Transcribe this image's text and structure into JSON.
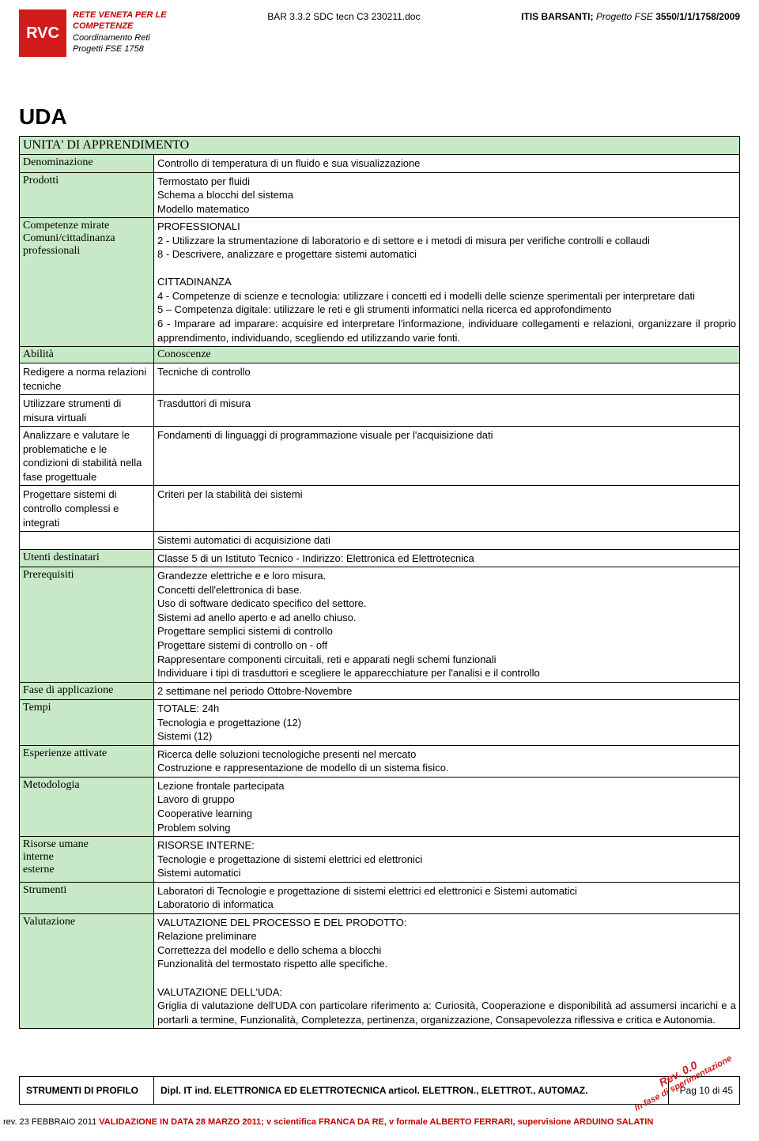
{
  "header": {
    "logo_abbr": "RVC",
    "logo_line1": "RETE VENETA PER LE",
    "logo_line2": "COMPETENZE",
    "logo_line3": "Coordinamento Reti",
    "logo_line4": "Progetti FSE 1758",
    "doc_ref": "BAR 3.3.2 SDC tecn C3 230211.doc",
    "right_prefix": "ITIS BARSANTI; ",
    "right_ital": "Progetto FSE ",
    "right_bold": "3550/1/1/1758/2009"
  },
  "title_h1": "UDA",
  "table_title": "UNITA' DI APPRENDIMENTO",
  "rows": {
    "denominazione": {
      "label": "Denominazione",
      "value": "Controllo di temperatura di un fluido e sua visualizzazione"
    },
    "prodotti": {
      "label": "Prodotti",
      "value": "Termostato per fluidi\nSchema a blocchi del sistema\nModello matematico"
    },
    "competenze": {
      "label": "Competenze mirate\nComuni/cittadinanza\nprofessionali",
      "value": "PROFESSIONALI\n2 - Utilizzare la strumentazione di laboratorio e di settore e i metodi di misura per verifiche controlli  e collaudi\n8 - Descrivere, analizzare e progettare sistemi automatici\n\nCITTADINANZA\n4 - Competenze di scienze e tecnologia: utilizzare i concetti ed i modelli delle scienze sperimentali per interpretare dati\n5 – Competenza digitale: utilizzare le reti e gli strumenti informatici nella ricerca ed approfondimento\n6 - Imparare ad imparare: acquisire ed interpretare l'informazione, individuare collegamenti e relazioni, organizzare il proprio apprendimento, individuando, scegliendo ed utilizzando varie fonti."
    }
  },
  "ac_header": {
    "abilita": "Abilità",
    "conoscenze": "Conoscenze"
  },
  "ac_rows": [
    {
      "a": "Redigere a norma relazioni tecniche",
      "c": "Tecniche di controllo"
    },
    {
      "a": "Utilizzare strumenti di misura virtuali",
      "c": "Trasduttori di misura"
    },
    {
      "a": "Analizzare e valutare le problematiche e le condizioni di  stabilità nella fase progettuale",
      "c": "Fondamenti di linguaggi di programmazione visuale per l'acquisizione dati"
    },
    {
      "a": "Progettare sistemi di controllo complessi e integrati",
      "c": "Criteri per la stabilità dei sistemi"
    },
    {
      "a": "",
      "c": "Sistemi automatici di acquisizione dati"
    }
  ],
  "rows2": {
    "utenti": {
      "label": "Utenti destinatari",
      "value": "Classe 5 di un Istituto Tecnico - Indirizzo: Elettronica ed Elettrotecnica"
    },
    "prerequisiti": {
      "label": "Prerequisiti",
      "value": "Grandezze elettriche e e loro misura.\nConcetti dell'elettronica di base.\nUso di software dedicato specifico del settore.\nSistemi ad anello aperto e ad anello chiuso.\nProgettare semplici sistemi di controllo\nProgettare sistemi di controllo  on - off\nRappresentare componenti circuitali, reti e apparati negli schemi funzionali\nIndividuare i tipi di trasduttori e scegliere le apparecchiature per l'analisi e il controllo"
    },
    "fase": {
      "label": "Fase di applicazione",
      "value": "2 settimane nel periodo Ottobre-Novembre"
    },
    "tempi": {
      "label": "Tempi",
      "value": "TOTALE: 24h\nTecnologia e progettazione (12)\nSistemi (12)"
    },
    "esperienze": {
      "label": "Esperienze attivate",
      "value": "Ricerca delle soluzioni tecnologiche presenti nel mercato\nCostruzione e rappresentazione de modello di un sistema fisico."
    },
    "metodologia": {
      "label": "Metodologia",
      "value": "Lezione frontale partecipata\nLavoro di gruppo\nCooperative learning\nProblem solving"
    },
    "risorse": {
      "label": "Risorse umane\ninterne\nesterne",
      "value": "RISORSE INTERNE:\nTecnologie e progettazione di sistemi elettrici ed elettronici\nSistemi automatici"
    },
    "strumenti": {
      "label": "Strumenti",
      "value": "Laboratori di Tecnologie e progettazione di sistemi elettrici ed elettronici e Sistemi automatici\nLaboratorio di informatica"
    },
    "valutazione": {
      "label": "Valutazione",
      "value": "VALUTAZIONE DEL PROCESSO E DEL PRODOTTO:\nRelazione preliminare\nCorrettezza del modello e dello schema a blocchi\nFunzionalità del termostato rispetto alle specifiche.\n\nVALUTAZIONE DELL'UDA:\nGriglia di valutazione dell'UDA con particolare riferimento a: Curiosità, Cooperazione e disponibilità ad assumersi incarichi e a portarli a termine, Funzionalità, Completezza,  pertinenza, organizzazione, Consapevolezza riflessiva e critica e Autonomia."
    }
  },
  "footer": {
    "left": "STRUMENTI DI PROFILO",
    "mid": "Dipl. IT ind. ELETTRONICA ED ELETTROTECNICA articol. ELETTRON., ELETTROT., AUTOMAZ.",
    "right": "Pag 10 di 45"
  },
  "stamp": {
    "l1": "Rev. 0.0",
    "l2": "In fase di sperimentazione"
  },
  "rev": {
    "prefix": "rev.  23 FEBBRAIO 2011  ",
    "red": "VALIDAZIONE IN DATA 28 MARZO 2011; v scientifica FRANCA DA RE, v formale ALBERTO FERRARI, supervisione ARDUINO SALATIN"
  }
}
